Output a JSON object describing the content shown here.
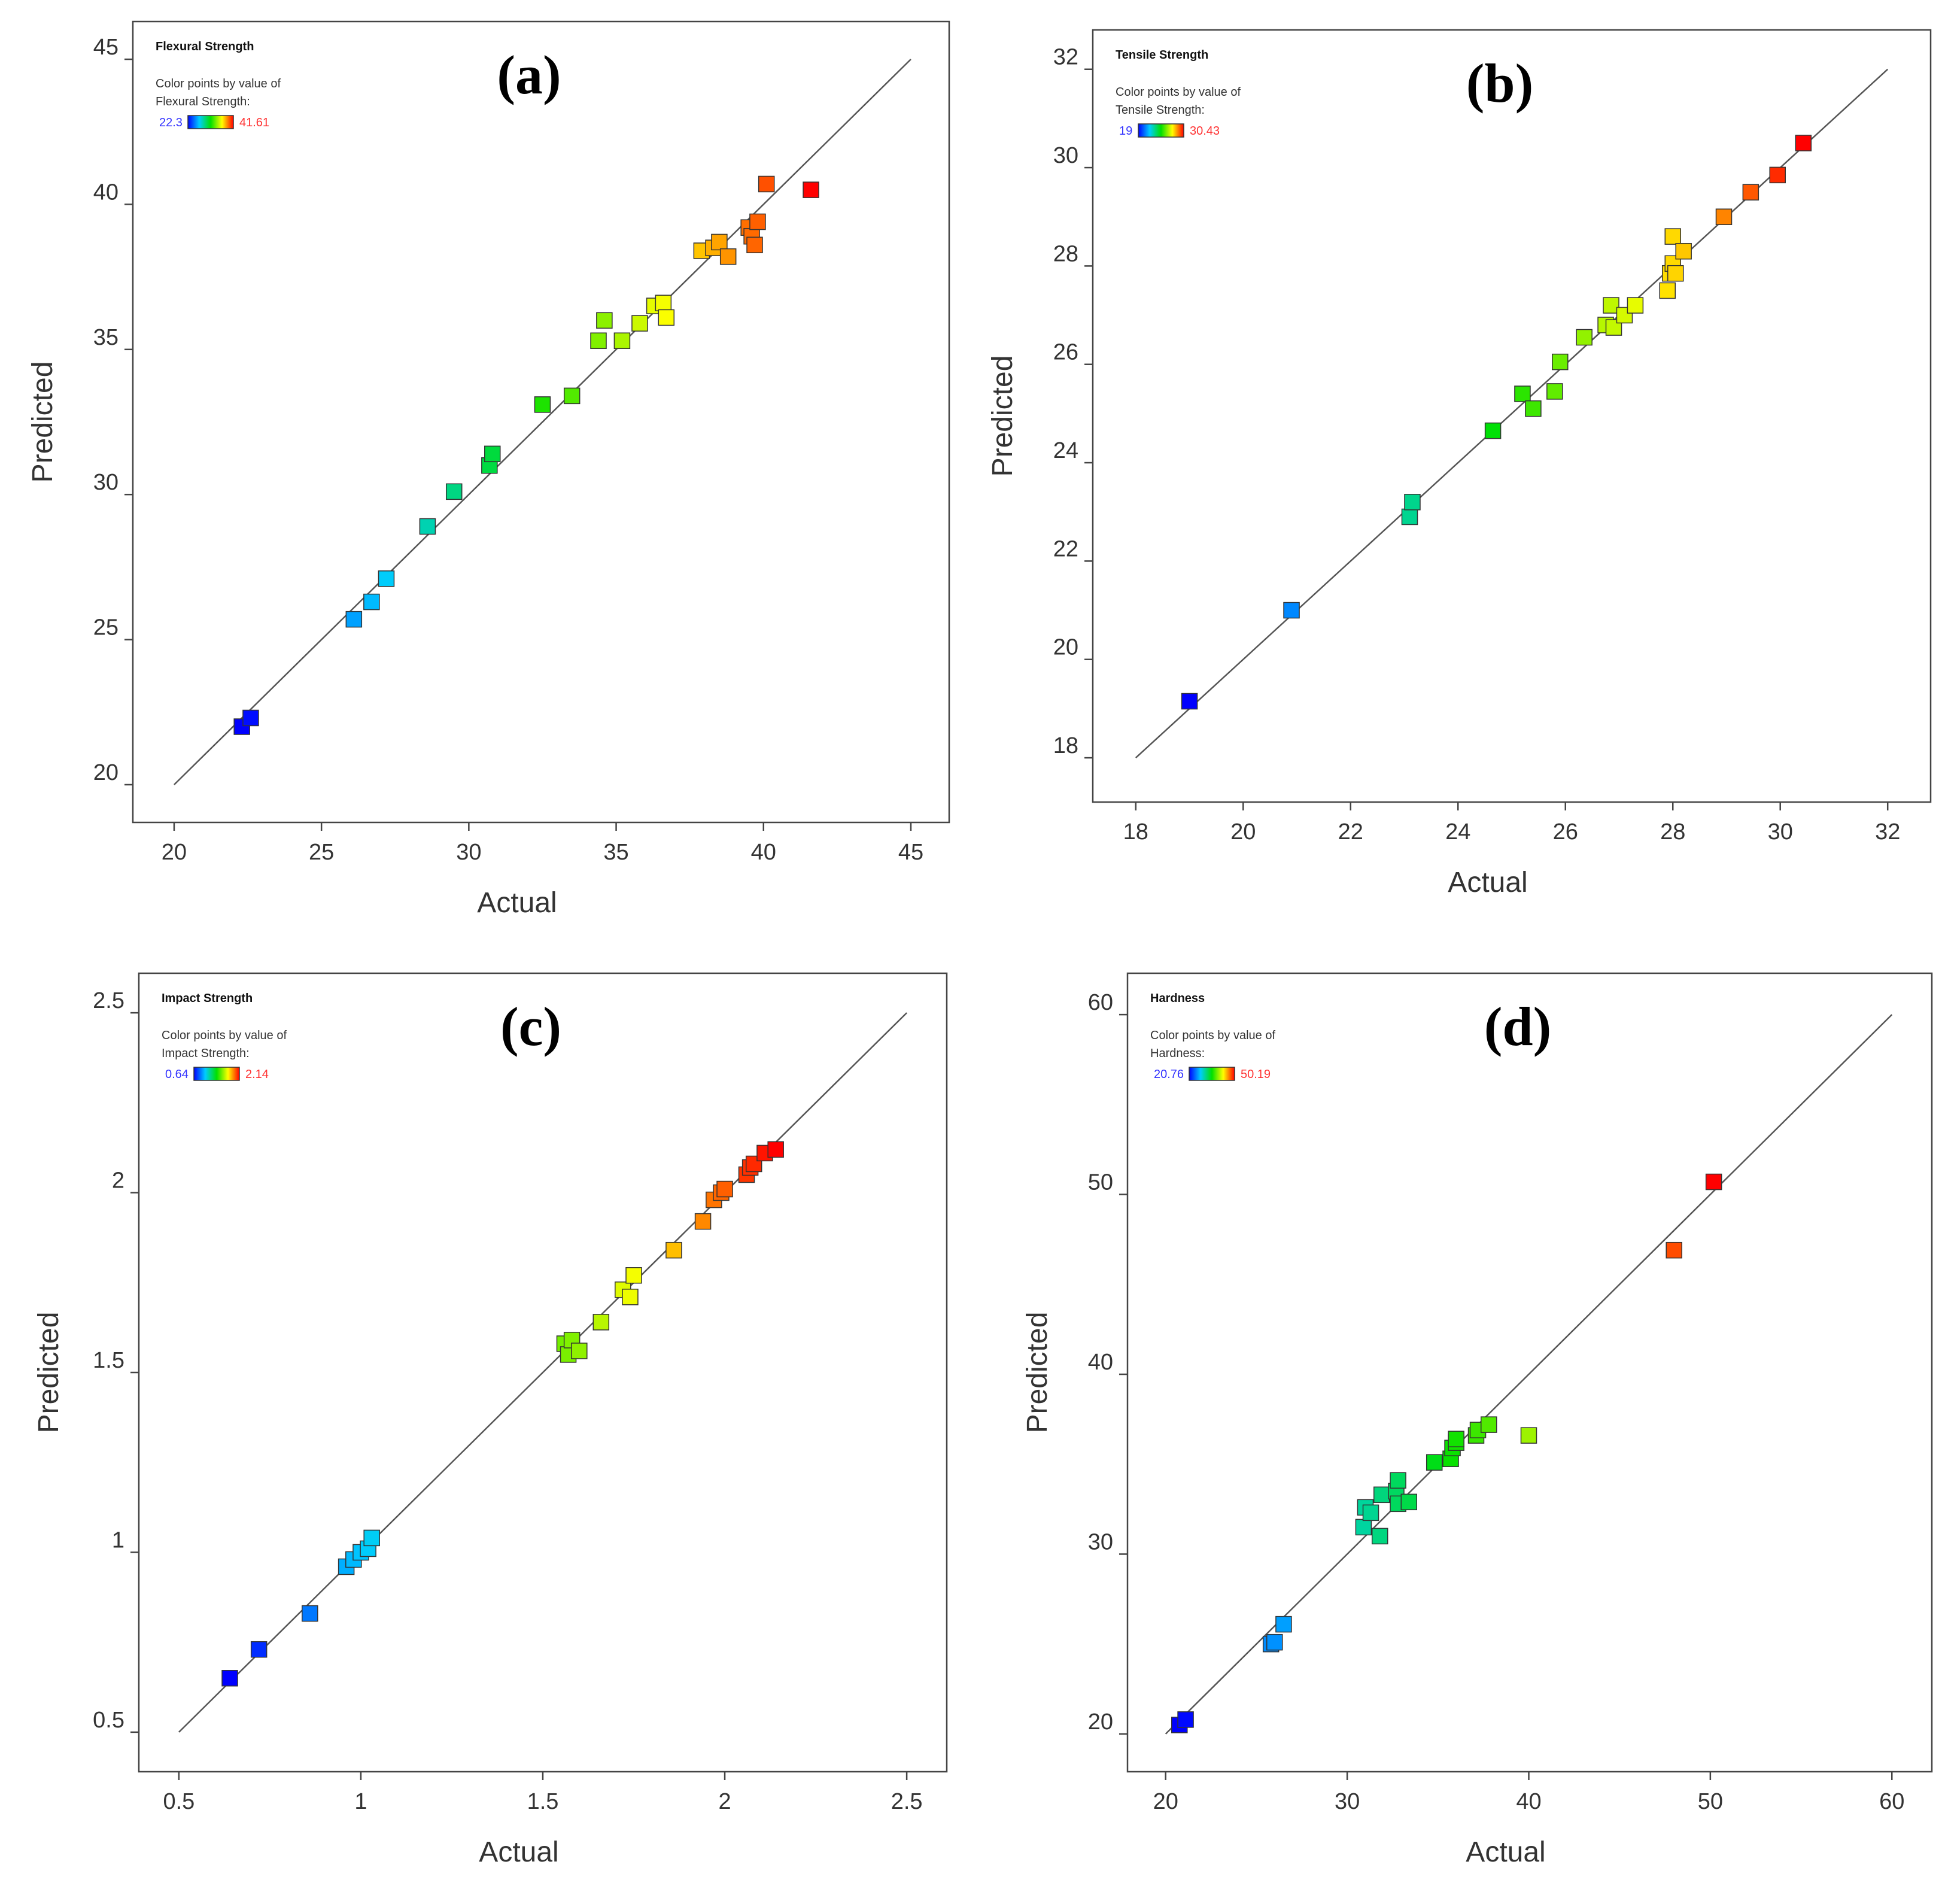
{
  "colors": {
    "background": "#ffffff",
    "frame": "#444444",
    "line": "#555555",
    "text": "#333333",
    "low_text": "#3333ff",
    "high_text": "#ff3333"
  },
  "chart_data": [
    {
      "type": "scatter",
      "panel_label": "(a)",
      "legend": {
        "title": "Flexural Strength",
        "desc_line1": "Color points by value of",
        "desc_line2": "Flexural Strength:",
        "min_label": "22.3",
        "max_label": "41.61",
        "min": 22.3,
        "max": 41.61
      },
      "xlabel": "Actual",
      "ylabel": "Predicted",
      "xlim": [
        18.6,
        46.3
      ],
      "ylim": [
        18.7,
        46.3
      ],
      "xticks": [
        20,
        25,
        30,
        35,
        40,
        45
      ],
      "yticks": [
        20,
        25,
        30,
        35,
        40,
        45
      ],
      "xtick_labels": [
        "20",
        "25",
        "30",
        "35",
        "40",
        "45"
      ],
      "ytick_labels": [
        "20",
        "25",
        "30",
        "35",
        "40",
        "45"
      ],
      "reference_line": [
        20,
        45
      ],
      "points": [
        [
          22.3,
          22.0
        ],
        [
          22.6,
          22.3
        ],
        [
          26.1,
          25.7
        ],
        [
          26.7,
          26.3
        ],
        [
          27.2,
          27.1
        ],
        [
          28.6,
          28.9
        ],
        [
          29.5,
          30.1
        ],
        [
          30.7,
          31.0
        ],
        [
          30.8,
          31.4
        ],
        [
          32.5,
          33.1
        ],
        [
          33.5,
          33.4
        ],
        [
          34.4,
          35.3
        ],
        [
          34.6,
          36.0
        ],
        [
          35.2,
          35.3
        ],
        [
          35.8,
          35.9
        ],
        [
          36.3,
          36.5
        ],
        [
          36.6,
          36.6
        ],
        [
          36.7,
          36.1
        ],
        [
          37.9,
          38.4
        ],
        [
          38.3,
          38.5
        ],
        [
          38.5,
          38.7
        ],
        [
          38.8,
          38.2
        ],
        [
          39.5,
          39.2
        ],
        [
          39.6,
          38.9
        ],
        [
          39.7,
          38.6
        ],
        [
          39.8,
          39.4
        ],
        [
          40.1,
          40.7
        ],
        [
          41.61,
          40.5
        ]
      ]
    },
    {
      "type": "scatter",
      "panel_label": "(b)",
      "legend": {
        "title": "Tensile Strength",
        "desc_line1": "Color points by value of",
        "desc_line2": "Tensile Strength:",
        "min_label": "19",
        "max_label": "30.43",
        "min": 19,
        "max": 30.43
      },
      "xlabel": "Actual",
      "ylabel": "Predicted",
      "xlim": [
        17.2,
        32.8
      ],
      "ylim": [
        17.1,
        32.8
      ],
      "xticks": [
        18,
        20,
        22,
        24,
        26,
        28,
        30,
        32
      ],
      "yticks": [
        18,
        20,
        22,
        24,
        26,
        28,
        30,
        32
      ],
      "xtick_labels": [
        "18",
        "20",
        "22",
        "24",
        "26",
        "28",
        "30",
        "32"
      ],
      "ytick_labels": [
        "18",
        "20",
        "22",
        "24",
        "26",
        "28",
        "30",
        "32"
      ],
      "reference_line": [
        18,
        32
      ],
      "points": [
        [
          19.0,
          19.15
        ],
        [
          20.9,
          21.0
        ],
        [
          23.1,
          22.9
        ],
        [
          23.15,
          23.2
        ],
        [
          24.65,
          24.65
        ],
        [
          25.2,
          25.4
        ],
        [
          25.4,
          25.1
        ],
        [
          25.8,
          25.45
        ],
        [
          25.9,
          26.05
        ],
        [
          26.35,
          26.55
        ],
        [
          26.75,
          26.8
        ],
        [
          26.85,
          27.2
        ],
        [
          26.9,
          26.75
        ],
        [
          27.1,
          27.0
        ],
        [
          27.3,
          27.2
        ],
        [
          27.9,
          27.5
        ],
        [
          27.95,
          27.85
        ],
        [
          28.0,
          28.05
        ],
        [
          28.0,
          28.6
        ],
        [
          28.05,
          27.85
        ],
        [
          28.2,
          28.3
        ],
        [
          28.95,
          29.0
        ],
        [
          29.45,
          29.5
        ],
        [
          29.95,
          29.85
        ],
        [
          30.43,
          30.5
        ]
      ]
    },
    {
      "type": "scatter",
      "panel_label": "(c)",
      "legend": {
        "title": "Impact Strength",
        "desc_line1": "Color points by value of",
        "desc_line2": "Impact Strength:",
        "min_label": "0.64",
        "max_label": "2.14",
        "min": 0.64,
        "max": 2.14
      },
      "xlabel": "Actual",
      "ylabel": "Predicted",
      "xlim": [
        0.39,
        2.61
      ],
      "ylim": [
        0.39,
        2.61
      ],
      "xticks": [
        0.5,
        1,
        1.5,
        2,
        2.5
      ],
      "yticks": [
        0.5,
        1,
        1.5,
        2,
        2.5
      ],
      "xtick_labels": [
        "0.5",
        "1",
        "1.5",
        "2",
        "2.5"
      ],
      "ytick_labels": [
        "0.5",
        "1",
        "1.5",
        "2",
        "2.5"
      ],
      "reference_line": [
        0.5,
        2.5
      ],
      "points": [
        [
          0.64,
          0.65
        ],
        [
          0.72,
          0.73
        ],
        [
          0.86,
          0.83
        ],
        [
          0.96,
          0.96
        ],
        [
          0.98,
          0.98
        ],
        [
          1.0,
          1.0
        ],
        [
          1.02,
          1.01
        ],
        [
          1.03,
          1.04
        ],
        [
          1.56,
          1.58
        ],
        [
          1.57,
          1.55
        ],
        [
          1.58,
          1.59
        ],
        [
          1.6,
          1.56
        ],
        [
          1.66,
          1.64
        ],
        [
          1.72,
          1.73
        ],
        [
          1.74,
          1.71
        ],
        [
          1.75,
          1.77
        ],
        [
          1.86,
          1.84
        ],
        [
          1.94,
          1.92
        ],
        [
          1.97,
          1.98
        ],
        [
          1.99,
          2.0
        ],
        [
          2.0,
          2.01
        ],
        [
          2.06,
          2.05
        ],
        [
          2.07,
          2.07
        ],
        [
          2.08,
          2.08
        ],
        [
          2.11,
          2.11
        ],
        [
          2.14,
          2.12
        ]
      ]
    },
    {
      "type": "scatter",
      "panel_label": "(d)",
      "legend": {
        "title": "Hardness",
        "desc_line1": "Color points by value of",
        "desc_line2": "Hardness:",
        "min_label": "20.76",
        "max_label": "50.19",
        "min": 20.76,
        "max": 50.19
      },
      "xlabel": "Actual",
      "ylabel": "Predicted",
      "xlim": [
        17.9,
        62.2
      ],
      "ylim": [
        17.9,
        62.3
      ],
      "xticks": [
        20,
        30,
        40,
        50,
        60
      ],
      "yticks": [
        20,
        30,
        40,
        50,
        60
      ],
      "xtick_labels": [
        "20",
        "30",
        "40",
        "50",
        "60"
      ],
      "ytick_labels": [
        "20",
        "30",
        "40",
        "50",
        "60"
      ],
      "reference_line": [
        20,
        60
      ],
      "points": [
        [
          20.76,
          20.5
        ],
        [
          21.1,
          20.8
        ],
        [
          25.8,
          25.0
        ],
        [
          26.0,
          25.1
        ],
        [
          26.5,
          26.1
        ],
        [
          30.9,
          31.5
        ],
        [
          31.0,
          32.6
        ],
        [
          31.3,
          32.3
        ],
        [
          31.8,
          31.0
        ],
        [
          31.9,
          33.3
        ],
        [
          32.7,
          33.5
        ],
        [
          32.8,
          32.8
        ],
        [
          32.8,
          34.1
        ],
        [
          33.4,
          32.9
        ],
        [
          34.8,
          35.1
        ],
        [
          35.7,
          35.3
        ],
        [
          35.8,
          35.9
        ],
        [
          36.0,
          36.2
        ],
        [
          36.0,
          36.4
        ],
        [
          37.1,
          36.6
        ],
        [
          37.2,
          36.9
        ],
        [
          37.8,
          37.2
        ],
        [
          40.0,
          36.6
        ],
        [
          48.0,
          46.9
        ],
        [
          50.19,
          50.7
        ]
      ]
    }
  ]
}
